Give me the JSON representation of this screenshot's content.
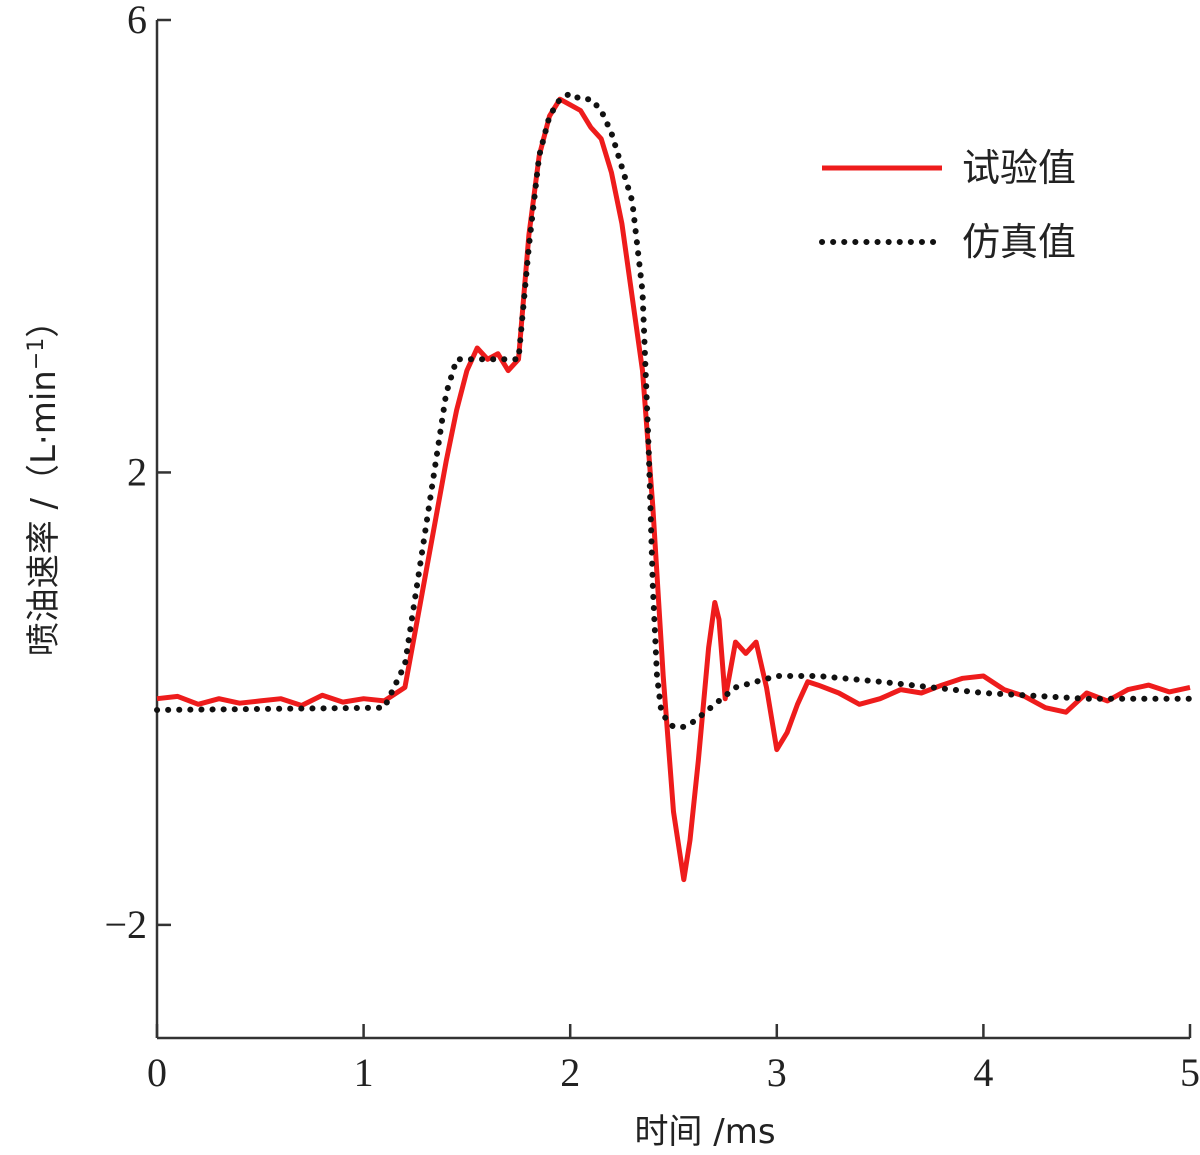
{
  "chart_data": {
    "type": "line",
    "title": "",
    "xlabel": "时间 /ms",
    "ylabel_main": "喷油速率 /（L·min",
    "ylabel_sup": "−1",
    "ylabel_close": "）",
    "xlim": [
      0,
      5
    ],
    "ylim": [
      -3,
      6
    ],
    "xticks": [
      {
        "value": 0,
        "label": "0"
      },
      {
        "value": 1,
        "label": "1"
      },
      {
        "value": 2,
        "label": "2"
      },
      {
        "value": 3,
        "label": "3"
      },
      {
        "value": 4,
        "label": "4"
      },
      {
        "value": 5,
        "label": "5"
      }
    ],
    "yticks": [
      {
        "value": -2,
        "label": "−2"
      },
      {
        "value": 2,
        "label": "2"
      },
      {
        "value": 6,
        "label": "6"
      }
    ],
    "grid": false,
    "legend_position": "top-right",
    "series": [
      {
        "name": "试验值",
        "color": "#ee1c1c",
        "style": "solid",
        "x": [
          0,
          0.1,
          0.2,
          0.3,
          0.4,
          0.5,
          0.6,
          0.7,
          0.8,
          0.9,
          1.0,
          1.1,
          1.2,
          1.25,
          1.3,
          1.35,
          1.4,
          1.45,
          1.5,
          1.55,
          1.6,
          1.65,
          1.7,
          1.75,
          1.8,
          1.85,
          1.9,
          1.95,
          2.0,
          2.05,
          2.1,
          2.15,
          2.2,
          2.25,
          2.3,
          2.35,
          2.4,
          2.45,
          2.5,
          2.55,
          2.58,
          2.62,
          2.67,
          2.7,
          2.72,
          2.75,
          2.8,
          2.85,
          2.9,
          2.95,
          3.0,
          3.05,
          3.1,
          3.15,
          3.2,
          3.3,
          3.4,
          3.5,
          3.6,
          3.7,
          3.8,
          3.9,
          4.0,
          4.1,
          4.2,
          4.3,
          4.4,
          4.5,
          4.6,
          4.7,
          4.8,
          4.9,
          5.0
        ],
        "y": [
          0,
          0.02,
          -0.05,
          0.0,
          -0.04,
          -0.02,
          0.0,
          -0.06,
          0.03,
          -0.03,
          0.0,
          -0.02,
          0.1,
          0.6,
          1.1,
          1.6,
          2.1,
          2.55,
          2.9,
          3.1,
          3.0,
          3.05,
          2.9,
          3.0,
          4.1,
          4.8,
          5.15,
          5.3,
          5.25,
          5.2,
          5.05,
          4.95,
          4.65,
          4.2,
          3.55,
          2.9,
          1.7,
          0.2,
          -1.0,
          -1.6,
          -1.25,
          -0.55,
          0.45,
          0.85,
          0.7,
          0.0,
          0.5,
          0.4,
          0.5,
          0.1,
          -0.45,
          -0.3,
          -0.05,
          0.15,
          0.12,
          0.05,
          -0.05,
          0.0,
          0.08,
          0.05,
          0.12,
          0.18,
          0.2,
          0.08,
          0.02,
          -0.08,
          -0.12,
          0.05,
          -0.02,
          0.08,
          0.12,
          0.06,
          0.1
        ]
      },
      {
        "name": "仿真值",
        "color": "#111111",
        "style": "dotted",
        "x": [
          0,
          1.1,
          1.2,
          1.3,
          1.35,
          1.4,
          1.45,
          1.5,
          1.75,
          1.8,
          1.85,
          1.9,
          1.95,
          2.0,
          2.05,
          2.1,
          2.15,
          2.2,
          2.3,
          2.35,
          2.38,
          2.4,
          2.42,
          2.44,
          2.47,
          2.5,
          2.55,
          2.6,
          2.7,
          2.8,
          2.9,
          3.0,
          3.2,
          3.5,
          4.0,
          4.5,
          5.0
        ],
        "y": [
          -0.1,
          -0.08,
          0.3,
          1.5,
          2.1,
          2.7,
          3.0,
          3.0,
          3.0,
          4.0,
          4.8,
          5.15,
          5.3,
          5.35,
          5.3,
          5.3,
          5.2,
          5.0,
          4.4,
          3.6,
          2.2,
          1.0,
          0.2,
          -0.1,
          -0.2,
          -0.25,
          -0.25,
          -0.2,
          -0.05,
          0.1,
          0.15,
          0.2,
          0.2,
          0.15,
          0.05,
          0.0,
          0.0
        ]
      }
    ]
  }
}
